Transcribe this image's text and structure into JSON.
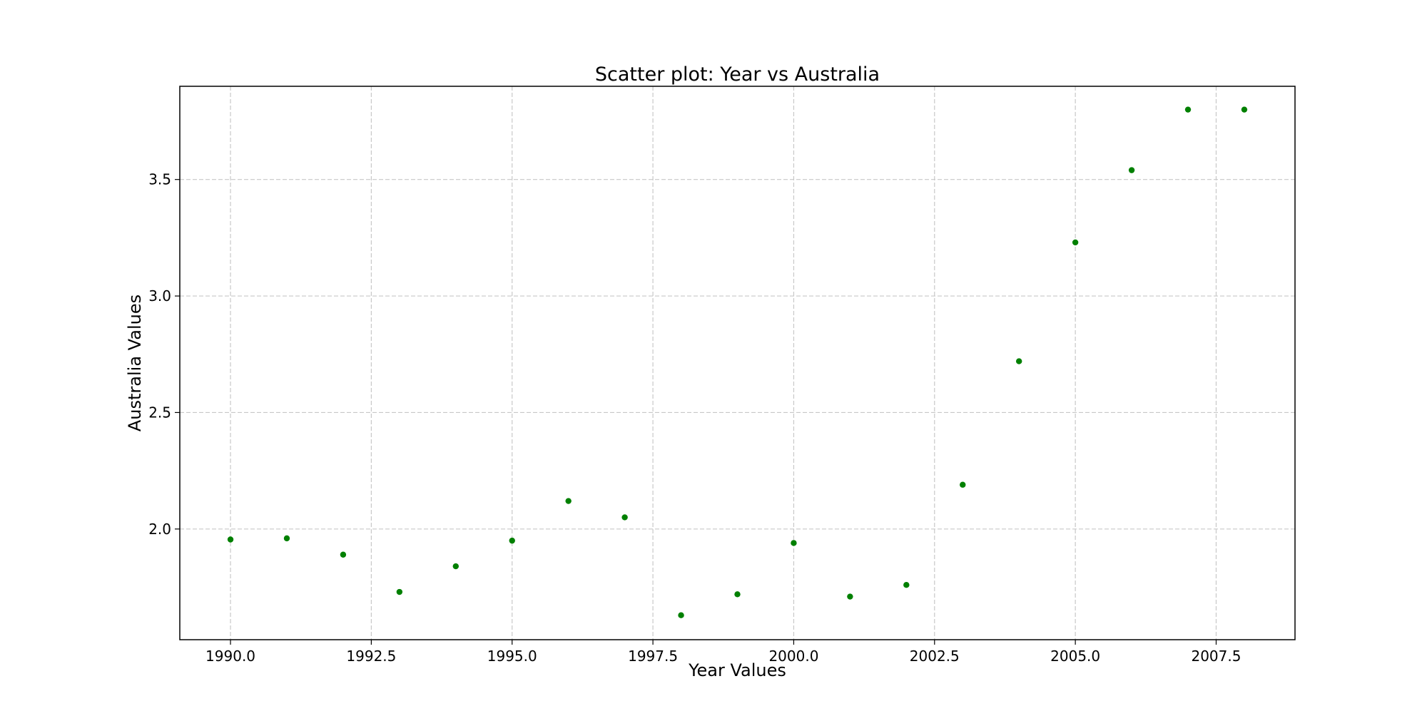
{
  "chart_data": {
    "type": "scatter",
    "title": "Scatter plot: Year vs Australia",
    "xlabel": "Year Values",
    "ylabel": "Australia Values",
    "xlim": [
      1989.1,
      2008.9
    ],
    "ylim": [
      1.525,
      3.9
    ],
    "xticks": [
      1990.0,
      1992.5,
      1995.0,
      1997.5,
      2000.0,
      2002.5,
      2005.0,
      2007.5
    ],
    "xtick_labels": [
      "1990.0",
      "1992.5",
      "1995.0",
      "1997.5",
      "2000.0",
      "2002.5",
      "2005.0",
      "2007.5"
    ],
    "yticks": [
      2.0,
      2.5,
      3.0,
      3.5
    ],
    "ytick_labels": [
      "2.0",
      "2.5",
      "3.0",
      "3.5"
    ],
    "grid": true,
    "marker_color": "#008000",
    "series": [
      {
        "x": [
          1990,
          1991,
          1992,
          1993,
          1994,
          1995,
          1996,
          1997,
          1998,
          1999,
          2000,
          2001,
          2002,
          2003,
          2004,
          2005,
          2006,
          2007,
          2008
        ],
        "y": [
          1.955,
          1.96,
          1.89,
          1.73,
          1.84,
          1.95,
          2.12,
          2.05,
          1.63,
          1.72,
          1.94,
          1.71,
          1.76,
          2.19,
          2.72,
          3.23,
          3.54,
          3.8,
          3.8
        ]
      }
    ]
  }
}
